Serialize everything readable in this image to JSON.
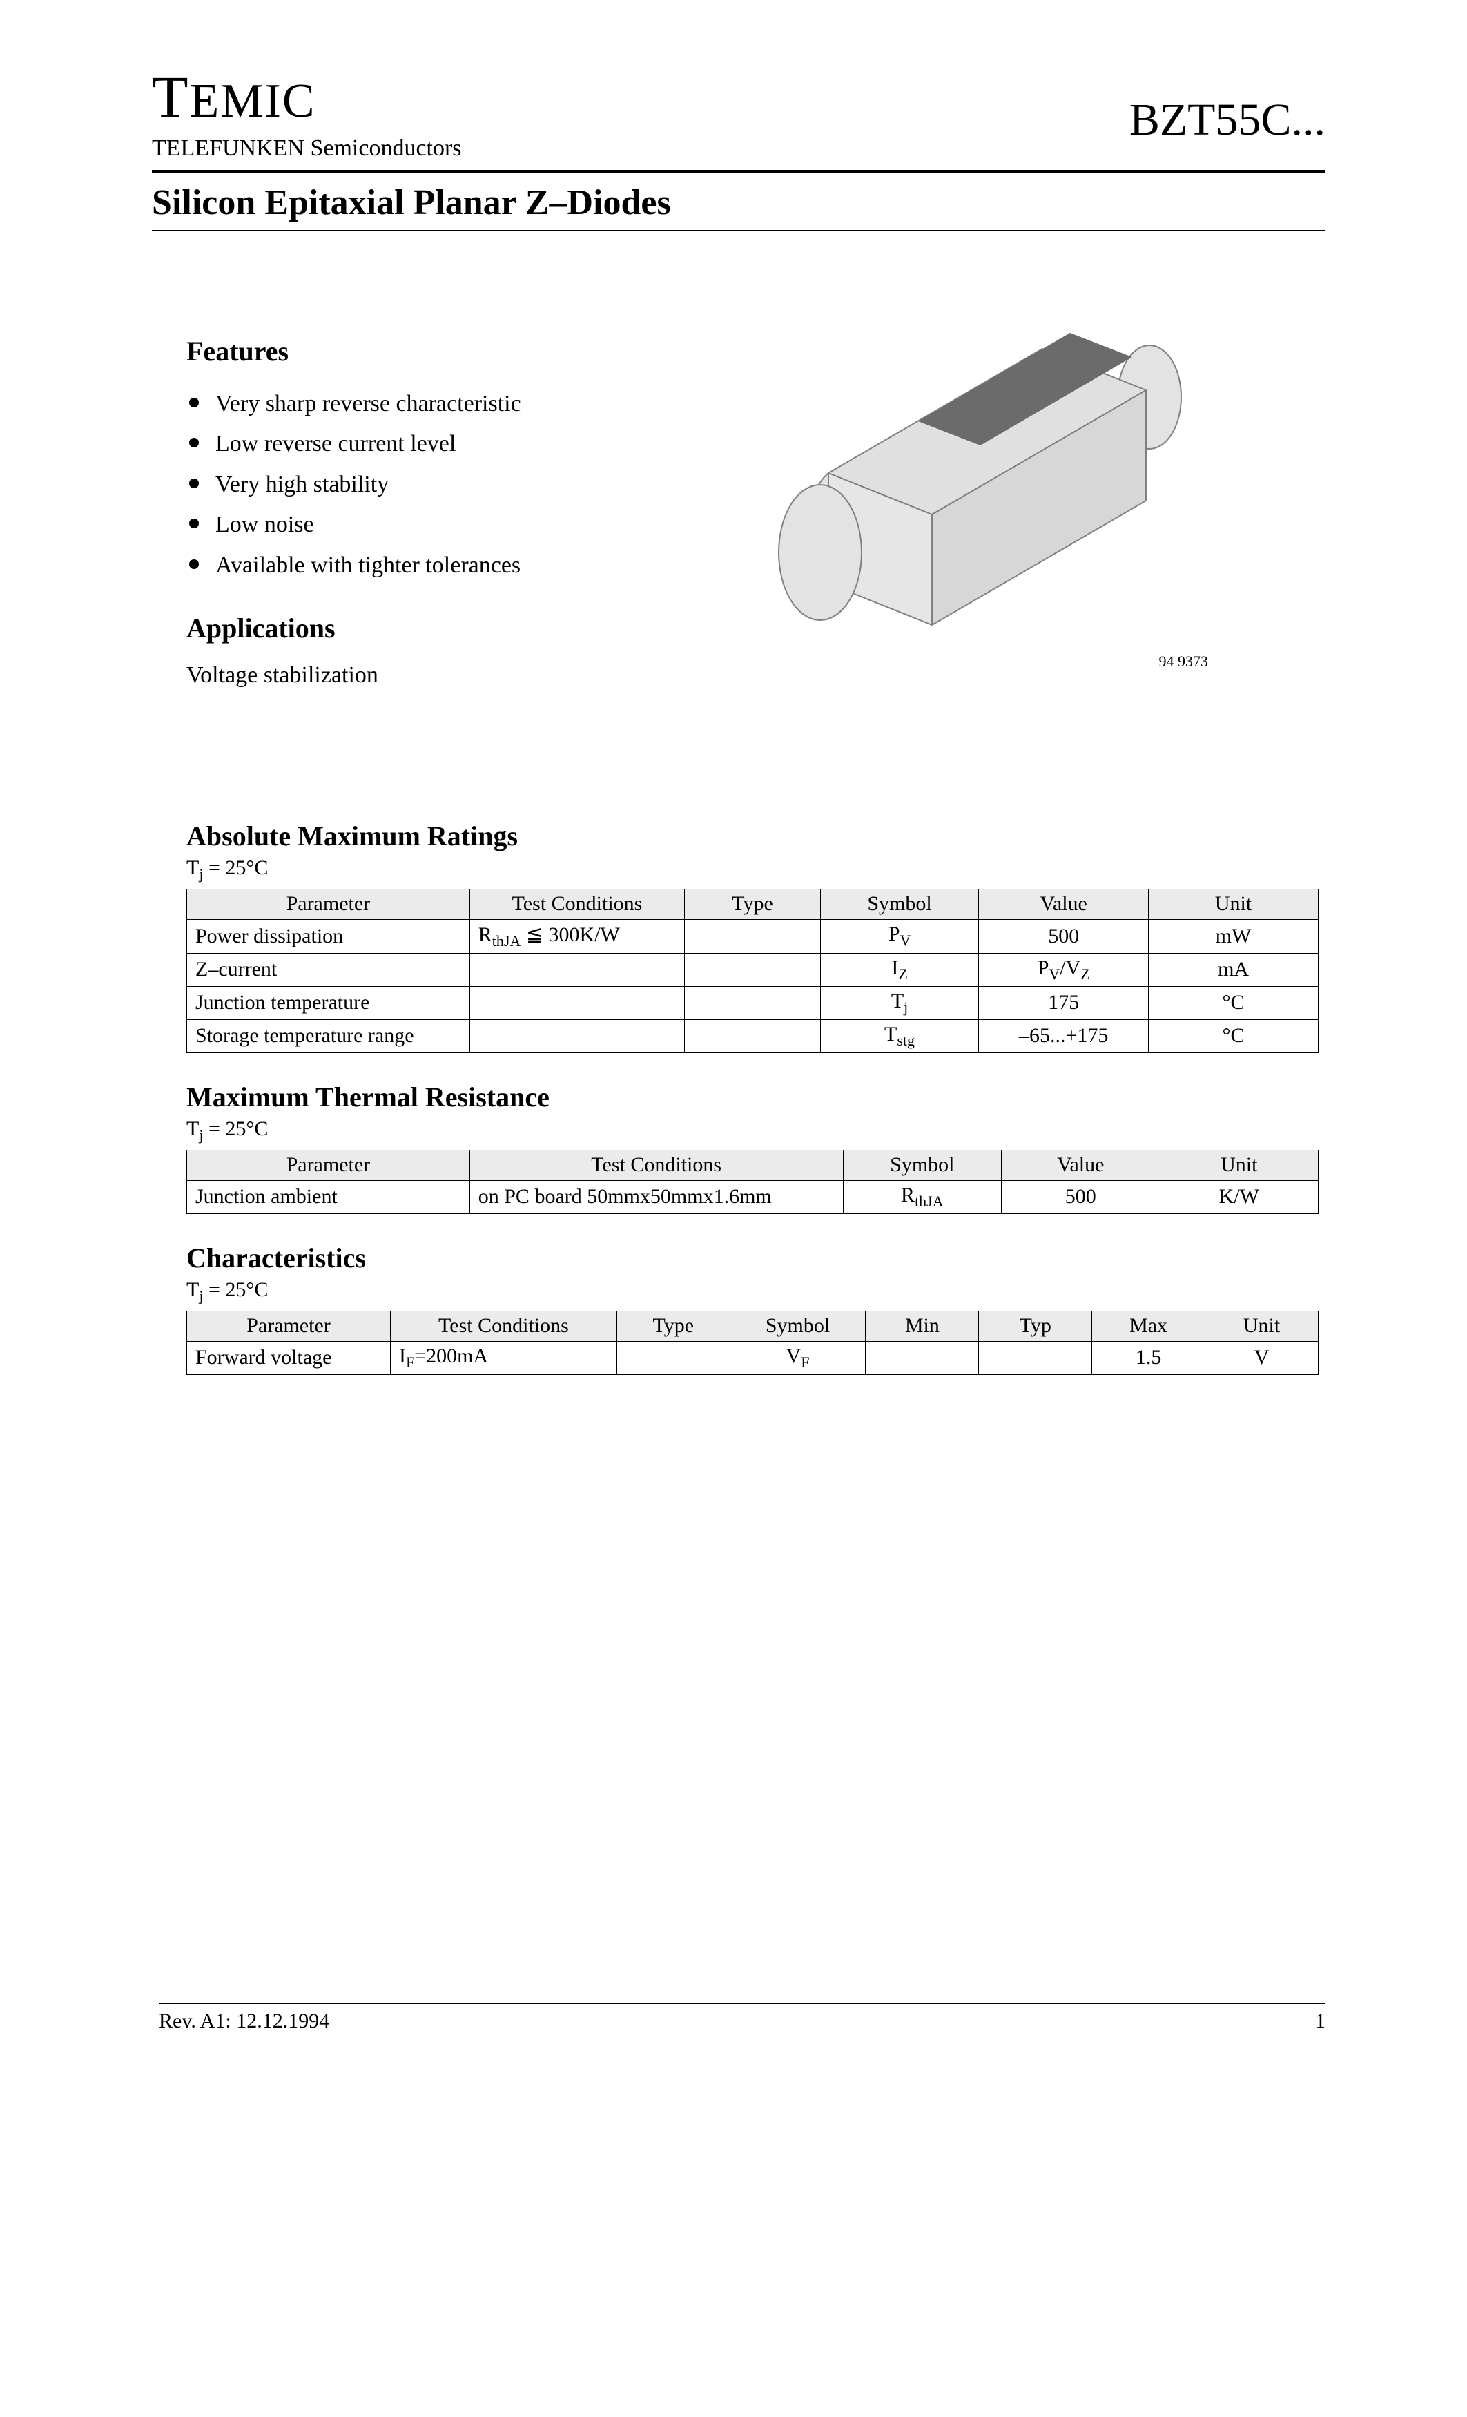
{
  "header": {
    "brand": "TEMIC",
    "subbrand": "TELEFUNKEN Semiconductors",
    "part_number": "BZT55C..."
  },
  "doc_title": "Silicon Epitaxial Planar Z–Diodes",
  "features": {
    "title": "Features",
    "items": [
      "Very sharp reverse characteristic",
      "Low reverse current level",
      "Very high stability",
      "Low noise",
      "Available with tighter tolerances"
    ]
  },
  "applications": {
    "title": "Applications",
    "text": "Voltage stabilization"
  },
  "diagram": {
    "body_fill": "#e3e3e3",
    "band_fill": "#6b6b6b",
    "stroke": "#808080",
    "caption": "94 9373"
  },
  "tj_note_html": "T<sub>j</sub> = 25°C",
  "abs_max": {
    "title": "Absolute Maximum Ratings",
    "columns": [
      "Parameter",
      "Test Conditions",
      "Type",
      "Symbol",
      "Value",
      "Unit"
    ],
    "col_widths_pct": [
      25,
      19,
      12,
      14,
      15,
      15
    ],
    "rows": [
      {
        "param": "Power dissipation",
        "cond_html": "R<span class=\"sub\">thJA</span> ≦ 300K/W",
        "type": "",
        "symbol_html": "P<span class=\"sub\">V</span>",
        "value": "500",
        "unit": "mW"
      },
      {
        "param": "Z–current",
        "cond_html": "",
        "type": "",
        "symbol_html": "I<span class=\"sub\">Z</span>",
        "value_html": "P<span class=\"sub\">V</span>/V<span class=\"sub\">Z</span>",
        "unit": "mA"
      },
      {
        "param": "Junction temperature",
        "cond_html": "",
        "type": "",
        "symbol_html": "T<span class=\"sub\">j</span>",
        "value": "175",
        "unit": "°C"
      },
      {
        "param": "Storage temperature range",
        "cond_html": "",
        "type": "",
        "symbol_html": "T<span class=\"sub\">stg</span>",
        "value": "–65...+175",
        "unit": "°C"
      }
    ]
  },
  "thermal": {
    "title": "Maximum Thermal Resistance",
    "columns": [
      "Parameter",
      "Test Conditions",
      "Symbol",
      "Value",
      "Unit"
    ],
    "col_widths_pct": [
      25,
      33,
      14,
      14,
      14
    ],
    "rows": [
      {
        "param": "Junction ambient",
        "cond": "on PC board 50mmx50mmx1.6mm",
        "symbol_html": "R<span class=\"sub\">thJA</span>",
        "value": "500",
        "unit": "K/W"
      }
    ]
  },
  "characteristics": {
    "title": "Characteristics",
    "columns": [
      "Parameter",
      "Test Conditions",
      "Type",
      "Symbol",
      "Min",
      "Typ",
      "Max",
      "Unit"
    ],
    "col_widths_pct": [
      18,
      20,
      10,
      12,
      10,
      10,
      10,
      10
    ],
    "rows": [
      {
        "param": "Forward voltage",
        "cond_html": "I<span class=\"sub\">F</span>=200mA",
        "type": "",
        "symbol_html": "V<span class=\"sub\">F</span>",
        "min": "",
        "typ": "",
        "max": "1.5",
        "unit": "V"
      }
    ]
  },
  "footer": {
    "rev": "Rev. A1: 12.12.1994",
    "page": "1"
  }
}
